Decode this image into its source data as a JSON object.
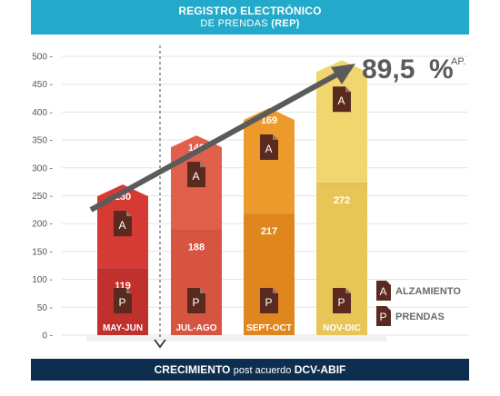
{
  "header": {
    "title_line1": "REGISTRO ELECTRÓNICO",
    "title_line2_plain": "DE PRENDAS",
    "title_line2_bold": "(REP)"
  },
  "footer": {
    "bold1": "CRECIMIENTO",
    "plain": "post acuerdo",
    "bold2": "DCV-ABIF"
  },
  "growth": {
    "value": "89,5",
    "suffix": "%",
    "note": "AP."
  },
  "legend": [
    {
      "letter": "A",
      "label": "ALZAMIENTO"
    },
    {
      "letter": "P",
      "label": "PRENDAS"
    }
  ],
  "colors": {
    "header_bg": "#23a9c9",
    "footer_bg": "#0e2e4f",
    "bars": [
      {
        "bottom": "#c0302d",
        "top": "#d53a35"
      },
      {
        "bottom": "#d75441",
        "top": "#e0604c"
      },
      {
        "bottom": "#e0861f",
        "top": "#ec9a2c"
      },
      {
        "bottom": "#e7c657",
        "top": "#f0d66f"
      }
    ],
    "arrow": "#5b5b5b",
    "icon": "#5a2a1f"
  },
  "chart_data": {
    "type": "bar",
    "stacked": true,
    "categories": [
      "MAY-JUN",
      "JUL-AGO",
      "SEPT-OCT",
      "NOV-DIC"
    ],
    "series": [
      {
        "name": "PRENDAS",
        "values": [
          119,
          188,
          217,
          272
        ]
      },
      {
        "name": "ALZAMIENTO",
        "values": [
          130,
          149,
          169,
          200
        ]
      }
    ],
    "y_ticks": [
      "0",
      "50",
      "100",
      "150",
      "200",
      "250",
      "300",
      "350",
      "400",
      "450",
      "500"
    ],
    "ylim": [
      0,
      500
    ],
    "grid": true,
    "legend_position": "bottom-right"
  }
}
